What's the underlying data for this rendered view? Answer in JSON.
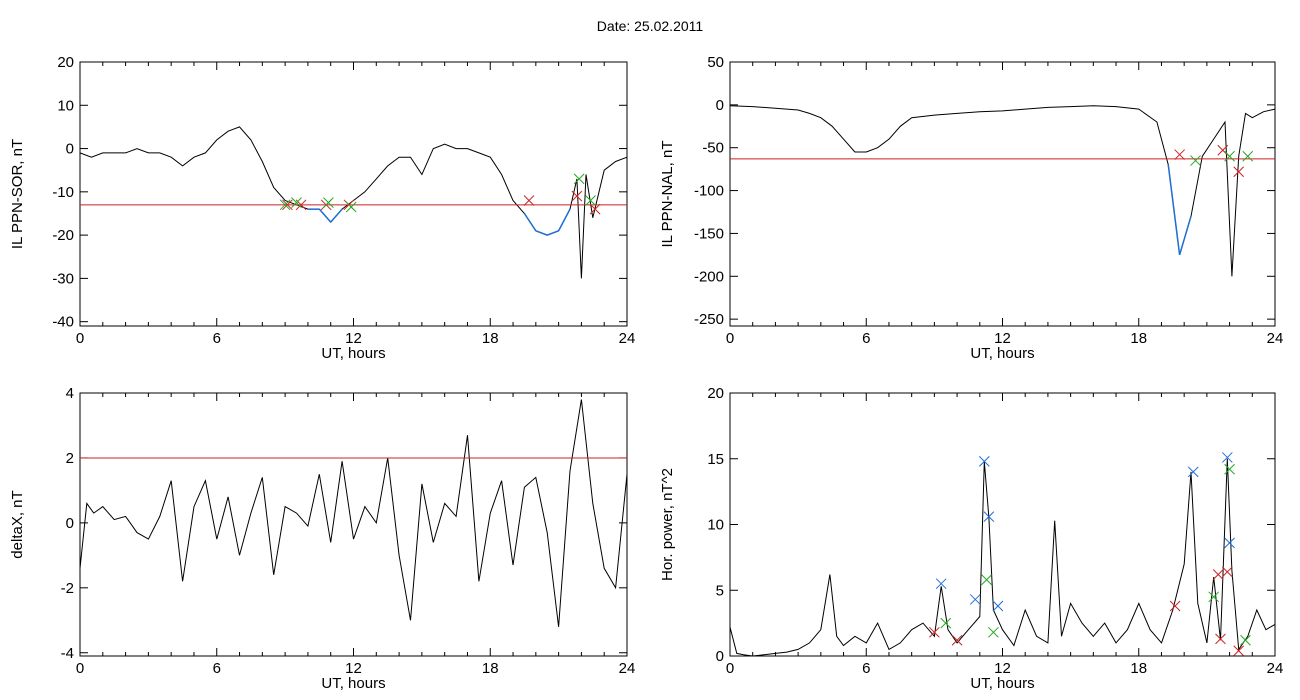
{
  "figure": {
    "title": "Date:  25.02.2011"
  },
  "colors": {
    "trace": "#000000",
    "highlight": "#1f6fd6",
    "threshold": "#cc2222",
    "marker_red": "#cc2222",
    "marker_green": "#22aa22",
    "marker_blue": "#1f6fd6"
  },
  "chart_data": [
    {
      "type": "line",
      "id": "sor",
      "xlabel": "UT, hours",
      "ylabel": "IL PPN-SOR, nT",
      "xlim": [
        0,
        24
      ],
      "ylim": [
        -41,
        20
      ],
      "xticks": [
        0,
        6,
        12,
        18,
        24
      ],
      "yticks": [
        20,
        10,
        0,
        -10,
        -20,
        -30,
        -40
      ],
      "threshold": -13,
      "series": [
        {
          "x": [
            0,
            0.5,
            1,
            1.5,
            2,
            2.5,
            3,
            3.5,
            4,
            4.5,
            5,
            5.5,
            6,
            6.5,
            7,
            7.5,
            8,
            8.5,
            9,
            9.5,
            10,
            10.5,
            11,
            11.5,
            12,
            12.5,
            13,
            13.5,
            14,
            14.5,
            15,
            15.5,
            16,
            16.5,
            17,
            17.5,
            18,
            18.5,
            19,
            19.5,
            20,
            20.5,
            21,
            21.5,
            21.8,
            22,
            22.2,
            22.5,
            23,
            23.5,
            24
          ],
          "y": [
            -1,
            -2,
            -1,
            -1,
            -1,
            0,
            -1,
            -1,
            -2,
            -4,
            -2,
            -1,
            2,
            4,
            5,
            2,
            -3,
            -9,
            -12,
            -13,
            -14,
            -14,
            -17,
            -14,
            -12,
            -10,
            -7,
            -4,
            -2,
            -2,
            -6,
            0,
            1,
            0,
            0,
            -1,
            -2,
            -6,
            -12,
            -15,
            -19,
            -20,
            -19,
            -14,
            -7,
            -30,
            -6,
            -16,
            -5,
            -3,
            -2
          ]
        }
      ],
      "markers_red": [
        [
          9.1,
          -13
        ],
        [
          9.7,
          -13
        ],
        [
          10.8,
          -13
        ],
        [
          11.8,
          -13
        ],
        [
          19.7,
          -12
        ],
        [
          21.8,
          -11
        ],
        [
          22.6,
          -14
        ]
      ],
      "markers_green": [
        [
          9.0,
          -13
        ],
        [
          9.5,
          -12.5
        ],
        [
          10.9,
          -12.5
        ],
        [
          11.9,
          -13.5
        ],
        [
          21.9,
          -7
        ],
        [
          22.4,
          -12
        ]
      ]
    },
    {
      "type": "line",
      "id": "nal",
      "xlabel": "UT, hours",
      "ylabel": "IL PPN-NAL, nT",
      "xlim": [
        0,
        24
      ],
      "ylim": [
        -258,
        50
      ],
      "xticks": [
        0,
        6,
        12,
        18,
        24
      ],
      "yticks": [
        50,
        0,
        -50,
        -100,
        -150,
        -200,
        -250
      ],
      "threshold": -63,
      "series": [
        {
          "x": [
            0,
            1,
            2,
            3,
            3.5,
            4,
            4.5,
            5,
            5.5,
            6,
            6.5,
            7,
            7.5,
            8,
            9,
            10,
            11,
            12,
            13,
            14,
            15,
            16,
            17,
            18,
            18.8,
            19.3,
            19.8,
            20.3,
            20.8,
            21.3,
            21.8,
            22.1,
            22.4,
            22.7,
            23,
            23.5,
            24
          ],
          "y": [
            -1,
            -2,
            -4,
            -6,
            -10,
            -15,
            -25,
            -40,
            -55,
            -55,
            -50,
            -40,
            -25,
            -15,
            -12,
            -10,
            -8,
            -7,
            -5,
            -3,
            -2,
            -1,
            -2,
            -5,
            -20,
            -70,
            -175,
            -130,
            -60,
            -40,
            -20,
            -200,
            -60,
            -10,
            -15,
            -8,
            -5
          ]
        }
      ],
      "markers_red": [
        [
          19.8,
          -58
        ],
        [
          21.7,
          -53
        ],
        [
          22.4,
          -78
        ]
      ],
      "markers_green": [
        [
          20.5,
          -65
        ],
        [
          22.0,
          -60
        ],
        [
          22.8,
          -60
        ]
      ]
    },
    {
      "type": "line",
      "id": "deltax",
      "xlabel": "UT, hours",
      "ylabel": "deltaX, nT",
      "xlim": [
        0,
        24
      ],
      "ylim": [
        -4.1,
        4
      ],
      "xticks": [
        0,
        6,
        12,
        18,
        24
      ],
      "yticks": [
        4,
        2,
        0,
        -2,
        -4
      ],
      "threshold": 2,
      "series": [
        {
          "x": [
            0,
            0.3,
            0.6,
            1,
            1.5,
            2,
            2.5,
            3,
            3.5,
            4,
            4.5,
            5,
            5.5,
            6,
            6.5,
            7,
            7.5,
            8,
            8.5,
            9,
            9.5,
            10,
            10.5,
            11,
            11.5,
            12,
            12.5,
            13,
            13.5,
            14,
            14.5,
            15,
            15.5,
            16,
            16.5,
            17,
            17.5,
            18,
            18.5,
            19,
            19.5,
            20,
            20.5,
            21,
            21.5,
            22,
            22.5,
            23,
            23.5,
            24
          ],
          "y": [
            -1.4,
            0.6,
            0.3,
            0.5,
            0.1,
            0.2,
            -0.3,
            -0.5,
            0.2,
            1.3,
            -1.8,
            0.5,
            1.3,
            -0.5,
            0.8,
            -1,
            0.3,
            1.4,
            -1.6,
            0.5,
            0.3,
            -0.1,
            1.5,
            -0.6,
            1.9,
            -0.5,
            0.5,
            0,
            2,
            -1,
            -3,
            1.2,
            -0.6,
            0.6,
            0.2,
            2.7,
            -1.8,
            0.3,
            1.3,
            -1.3,
            1.1,
            1.4,
            -0.3,
            -3.2,
            1.6,
            3.8,
            0.6,
            -1.4,
            -2,
            1.5
          ]
        }
      ]
    },
    {
      "type": "line",
      "id": "power",
      "xlabel": "UT, hours",
      "ylabel": "Hor. power, nT^2",
      "xlim": [
        0,
        24
      ],
      "ylim": [
        0,
        20
      ],
      "xticks": [
        0,
        6,
        12,
        18,
        24
      ],
      "yticks": [
        20,
        15,
        10,
        5,
        0
      ],
      "series": [
        {
          "x": [
            0,
            0.3,
            0.6,
            1,
            1.5,
            2,
            2.5,
            3,
            3.5,
            4,
            4.4,
            4.7,
            5,
            5.5,
            6,
            6.5,
            7,
            7.5,
            8,
            8.5,
            9,
            9.3,
            9.6,
            10,
            10.5,
            11,
            11.2,
            11.4,
            11.6,
            12,
            12.5,
            13,
            13.5,
            14,
            14.3,
            14.6,
            15,
            15.5,
            16,
            16.5,
            17,
            17.5,
            18,
            18.5,
            19,
            19.5,
            20,
            20.3,
            20.6,
            21,
            21.3,
            21.6,
            21.9,
            22.1,
            22.4,
            22.8,
            23.2,
            23.6,
            24
          ],
          "y": [
            2.2,
            0.2,
            0.1,
            0,
            0.1,
            0.2,
            0.3,
            0.5,
            1,
            2,
            6.2,
            1.5,
            0.8,
            1.5,
            1,
            2.5,
            0.5,
            1,
            2,
            2.5,
            1.5,
            5.3,
            2,
            1,
            2,
            3,
            14.8,
            10.5,
            3.5,
            2,
            0.8,
            3.5,
            1.5,
            1,
            10.3,
            1.5,
            4,
            2.5,
            1.5,
            2.5,
            1,
            2,
            4,
            2,
            1,
            3.5,
            7,
            14,
            4,
            1,
            6,
            1.2,
            15,
            6.5,
            0.5,
            1.5,
            3.5,
            2,
            2.4
          ]
        }
      ],
      "markers_blue": [
        [
          9.3,
          5.5
        ],
        [
          10.8,
          4.3
        ],
        [
          11.2,
          14.8
        ],
        [
          11.4,
          10.6
        ],
        [
          11.8,
          3.8
        ],
        [
          20.4,
          14.0
        ],
        [
          21.9,
          15.1
        ],
        [
          22.0,
          8.6
        ]
      ],
      "markers_green": [
        [
          9.5,
          2.5
        ],
        [
          11.3,
          5.8
        ],
        [
          11.6,
          1.8
        ],
        [
          21.3,
          4.5
        ],
        [
          22.0,
          14.2
        ],
        [
          22.7,
          1.2
        ]
      ],
      "markers_red": [
        [
          9.0,
          1.8
        ],
        [
          10.0,
          1.2
        ],
        [
          19.6,
          3.8
        ],
        [
          21.5,
          6.2
        ],
        [
          21.6,
          1.3
        ],
        [
          21.9,
          6.4
        ],
        [
          22.4,
          0.4
        ]
      ]
    }
  ]
}
